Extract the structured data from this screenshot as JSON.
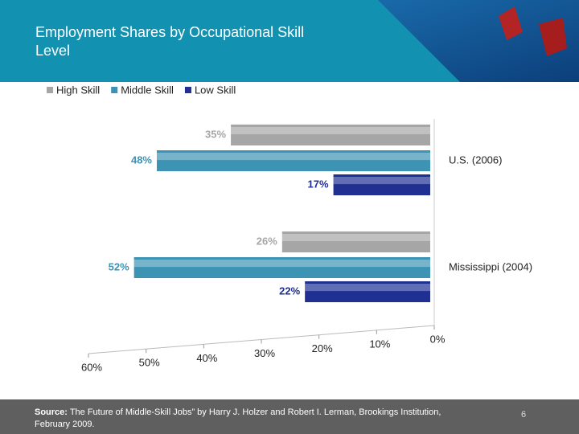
{
  "chart_data": {
    "type": "bar",
    "orientation": "horizontal",
    "title": "Employment Shares by Occupational Skill Level",
    "categories": [
      "U.S. (2006)",
      "Mississippi (2004)"
    ],
    "series": [
      {
        "name": "High Skill",
        "color": "#a6a6a6",
        "values": [
          35,
          26
        ],
        "value_labels": [
          "35%",
          "26%"
        ]
      },
      {
        "name": "Middle Skill",
        "color": "#3d93b4",
        "values": [
          48,
          52
        ],
        "value_labels": [
          "48%",
          "52%"
        ]
      },
      {
        "name": "Low Skill",
        "color": "#1f3092",
        "values": [
          17,
          22
        ],
        "value_labels": [
          "17%",
          "22%"
        ]
      }
    ],
    "xlim": [
      0,
      60
    ],
    "x_reversed": true,
    "xticks": [
      {
        "value": 0,
        "label": "0%"
      },
      {
        "value": 10,
        "label": "10%"
      },
      {
        "value": 20,
        "label": "20%"
      },
      {
        "value": 30,
        "label": "30%"
      },
      {
        "value": 40,
        "label": "40%"
      },
      {
        "value": 50,
        "label": "50%"
      },
      {
        "value": 60,
        "label": "60%"
      }
    ],
    "legend": "top"
  },
  "footer": {
    "source_label": "Source:",
    "source_text": "The Future of Middle-Skill Jobs” by Harry J. Holzer and Robert I. Lerman, Brookings Institution, February 2009.",
    "page": "6"
  }
}
